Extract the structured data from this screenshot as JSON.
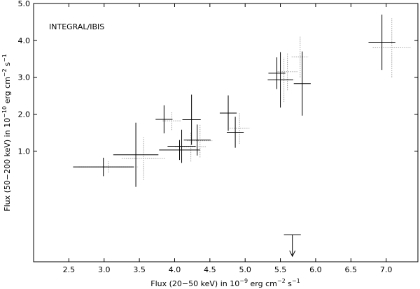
{
  "chart_data": {
    "type": "scatter",
    "annotation": "INTEGRAL/IBIS",
    "xlabel": {
      "prefix": "Flux (20−50 keV) in 10",
      "exp": "−9",
      "mid": " erg cm",
      "exp2": "−2",
      "end": " s",
      "exp3": "−1"
    },
    "ylabel": {
      "prefix": "Flux (50−200 keV) in 10",
      "exp": "−10",
      "mid": " erg cm",
      "exp2": "−2",
      "end": " s",
      "exp3": "−1"
    },
    "xlim": [
      2.0,
      7.45
    ],
    "ylim": [
      -2.0,
      5.0
    ],
    "xticks": [
      {
        "value": 2.5,
        "label": "2.5"
      },
      {
        "value": 3.0,
        "label": "3.0"
      },
      {
        "value": 3.5,
        "label": "3.5"
      },
      {
        "value": 4.0,
        "label": "4.0"
      },
      {
        "value": 4.5,
        "label": "4.5"
      },
      {
        "value": 5.0,
        "label": "5.0"
      },
      {
        "value": 5.5,
        "label": "5.5"
      },
      {
        "value": 6.0,
        "label": "6.0"
      },
      {
        "value": 6.5,
        "label": "6.5"
      },
      {
        "value": 7.0,
        "label": "7.0"
      }
    ],
    "yticks": [
      {
        "value": 1.0,
        "label": "1.0"
      },
      {
        "value": 2.0,
        "label": "2.0"
      },
      {
        "value": 3.0,
        "label": "3.0"
      },
      {
        "value": 4.0,
        "label": "4.0"
      },
      {
        "value": 5.0,
        "label": "5.0"
      }
    ],
    "series": [
      {
        "style": "solid",
        "color": "#000000",
        "points": [
          {
            "x": 2.99,
            "xerr": 0.43,
            "y": 0.57,
            "yerr": 0.25
          },
          {
            "x": 3.45,
            "xerr": 0.32,
            "y": 0.9,
            "yerr": 0.87
          },
          {
            "x": 3.85,
            "xerr": 0.12,
            "y": 1.86,
            "yerr": 0.38
          },
          {
            "x": 4.07,
            "xerr": 0.29,
            "y": 1.03,
            "yerr": 0.27
          },
          {
            "x": 4.1,
            "xerr": 0.2,
            "y": 1.13,
            "yerr": 0.45
          },
          {
            "x": 4.24,
            "xerr": 0.13,
            "y": 1.85,
            "yerr": 0.68
          },
          {
            "x": 4.32,
            "xerr": 0.19,
            "y": 1.3,
            "yerr": 0.42
          },
          {
            "x": 4.76,
            "xerr": 0.12,
            "y": 2.03,
            "yerr": 0.48
          },
          {
            "x": 4.86,
            "xerr": 0.12,
            "y": 1.51,
            "yerr": 0.42
          },
          {
            "x": 5.45,
            "xerr": 0.12,
            "y": 3.11,
            "yerr": 0.43
          },
          {
            "x": 5.5,
            "xerr": 0.18,
            "y": 2.93,
            "yerr": 0.75
          },
          {
            "x": 5.81,
            "xerr": 0.12,
            "y": 2.83,
            "yerr": 0.87
          },
          {
            "x": 6.94,
            "xerr": 0.19,
            "y": 3.95,
            "yerr": 0.75
          }
        ]
      },
      {
        "style": "dotted",
        "color": "#a0a0a0",
        "points": [
          {
            "x": 3.06,
            "xerr": 0.42,
            "y": 0.57,
            "yerr": 0.15
          },
          {
            "x": 3.56,
            "xerr": 0.31,
            "y": 0.8,
            "yerr": 0.58
          },
          {
            "x": 3.96,
            "xerr": 0.13,
            "y": 1.82,
            "yerr": 0.25
          },
          {
            "x": 4.23,
            "xerr": 0.22,
            "y": 1.12,
            "yerr": 0.4
          },
          {
            "x": 4.36,
            "xerr": 0.18,
            "y": 1.28,
            "yerr": 0.45
          },
          {
            "x": 4.92,
            "xerr": 0.14,
            "y": 1.62,
            "yerr": 0.42
          },
          {
            "x": 5.55,
            "xerr": 0.15,
            "y": 2.93,
            "yerr": 0.6
          },
          {
            "x": 5.6,
            "xerr": 0.14,
            "y": 3.15,
            "yerr": 0.5
          },
          {
            "x": 5.78,
            "xerr": 0.12,
            "y": 3.55,
            "yerr": 0.55
          },
          {
            "x": 7.08,
            "xerr": 0.27,
            "y": 3.8,
            "yerr": 0.8
          }
        ]
      }
    ],
    "upper_limits": [
      {
        "x": 5.67,
        "xerr": 0.12,
        "y": -1.27,
        "arrow_to": -1.85
      }
    ]
  }
}
